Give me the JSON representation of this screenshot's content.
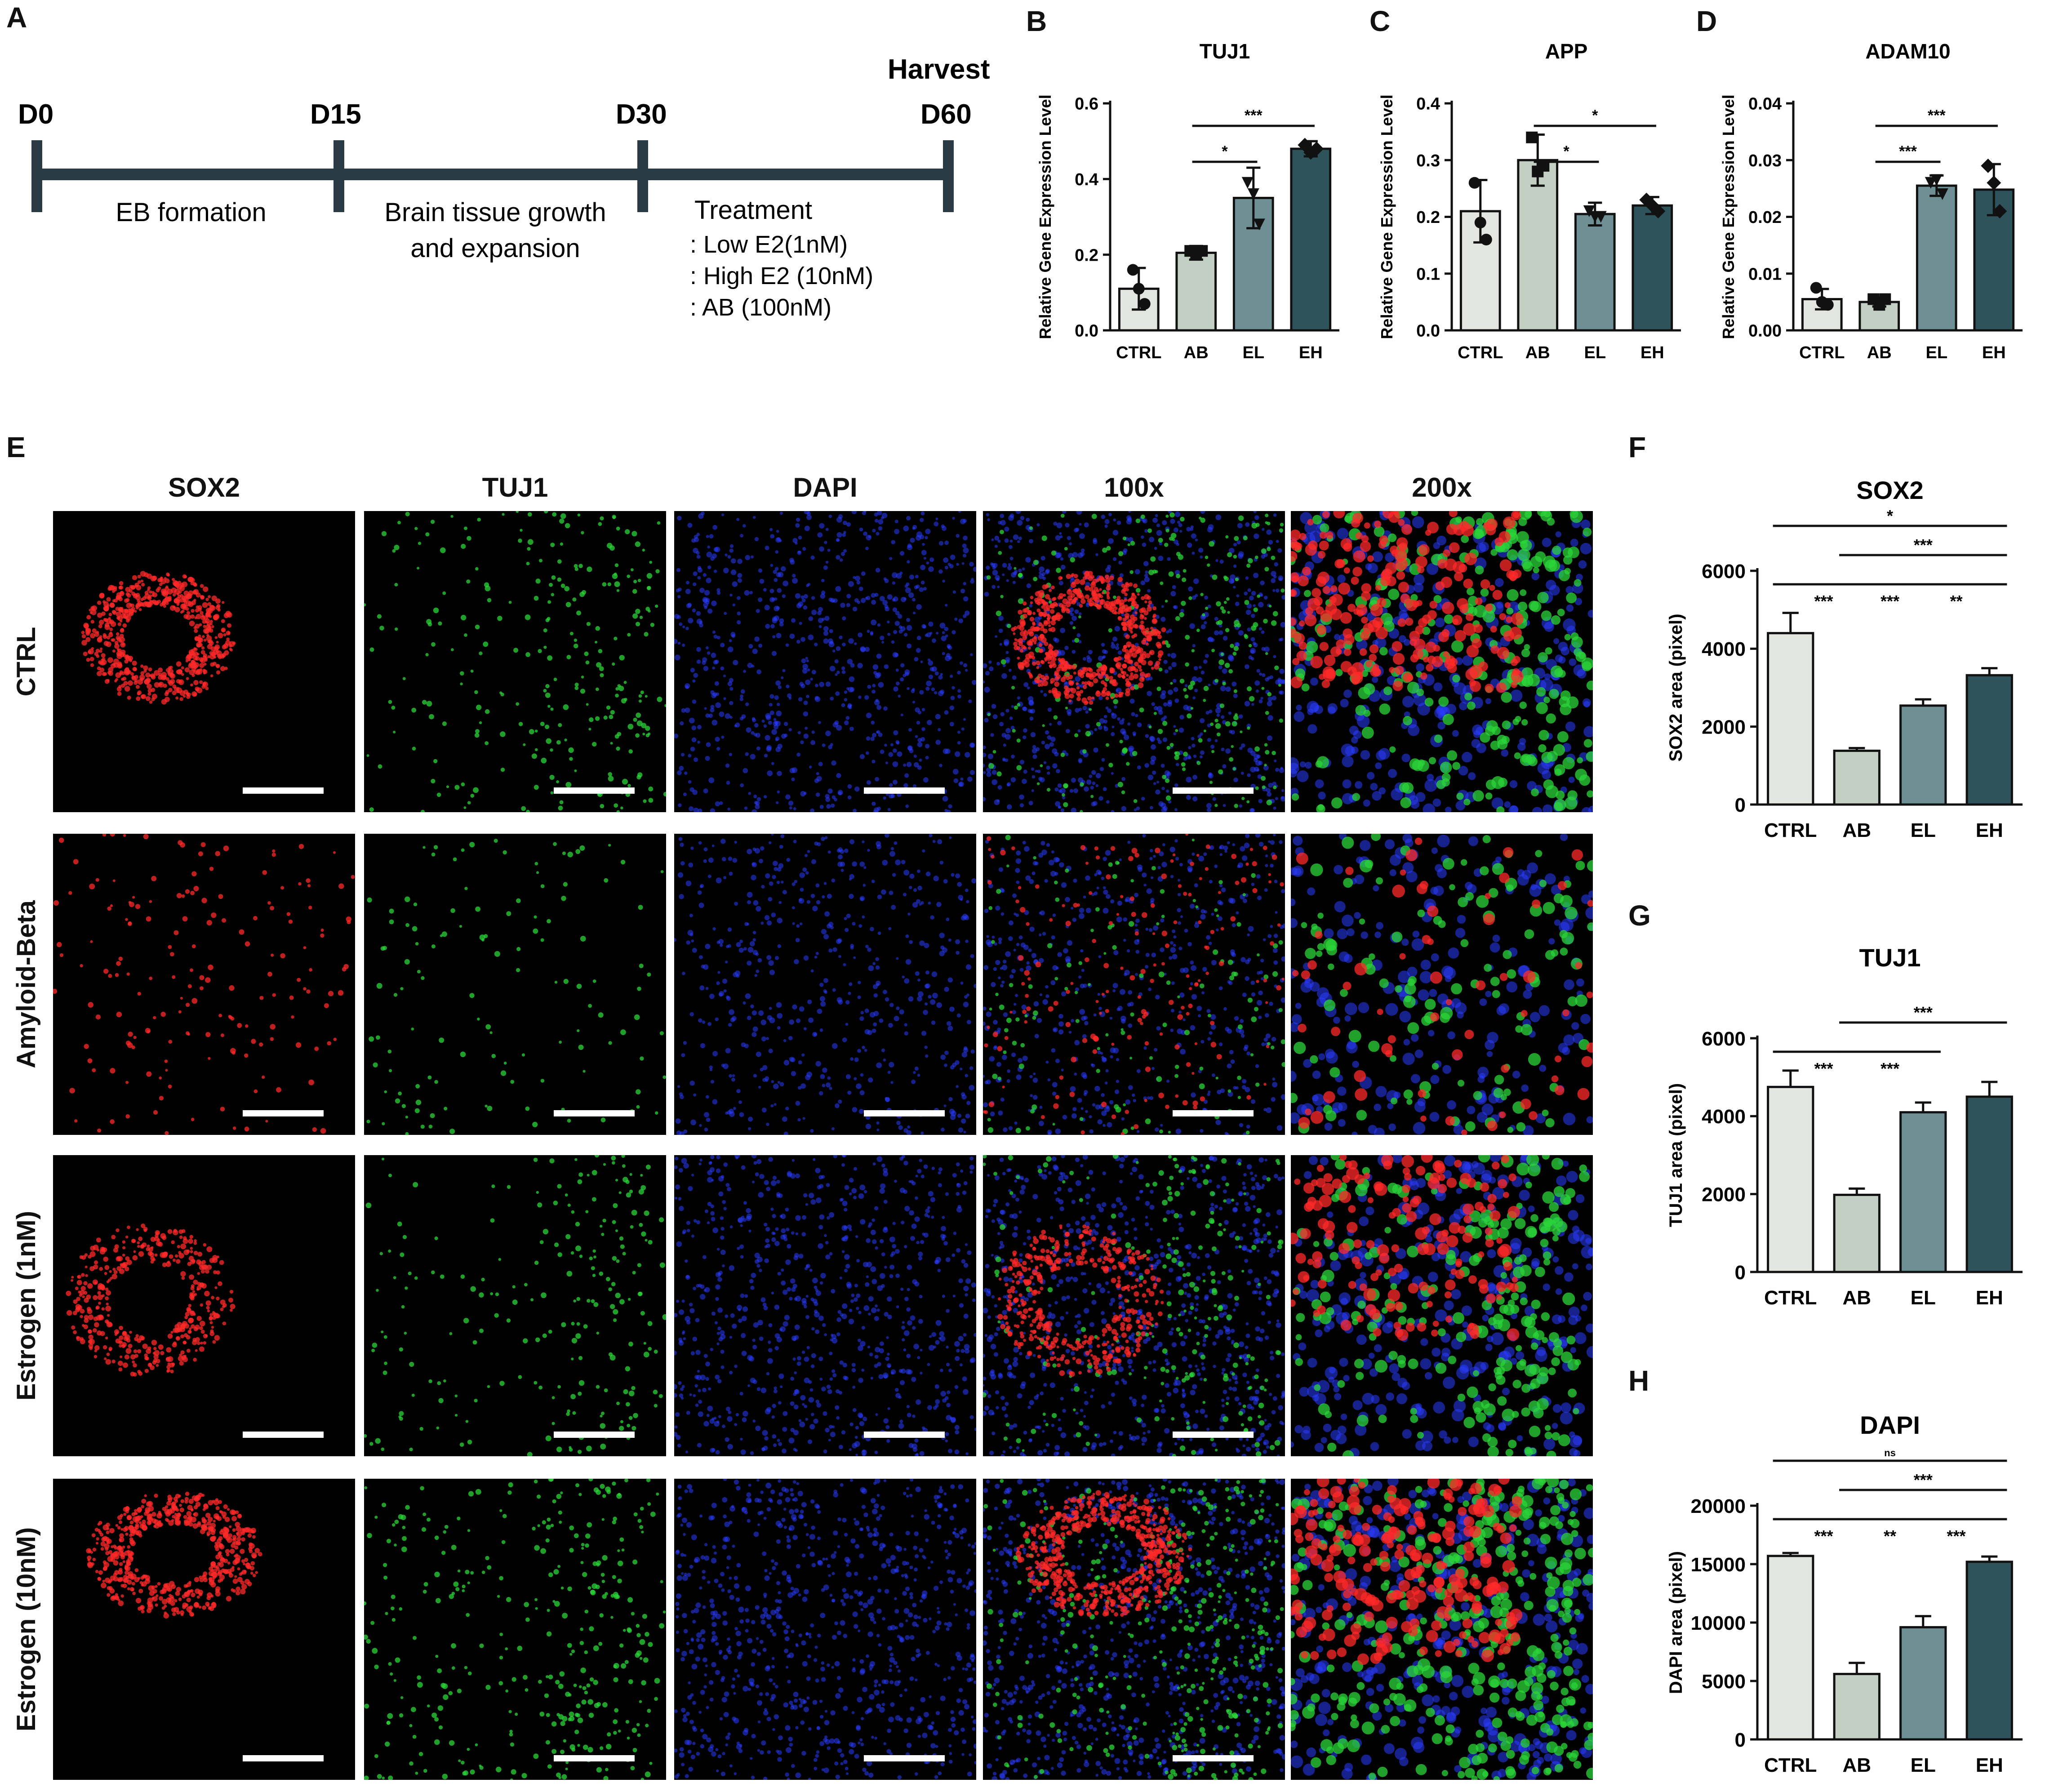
{
  "panel_letters": {
    "A": "A",
    "B": "B",
    "C": "C",
    "D": "D",
    "E": "E",
    "F": "F",
    "G": "G",
    "H": "H"
  },
  "timeline": {
    "days": [
      "D0",
      "D15",
      "D30",
      "D60"
    ],
    "harvest": "Harvest",
    "stage1": "EB formation",
    "stage2_line1": "Brain tissue growth",
    "stage2_line2": "and expansion",
    "treat_title": "Treatment",
    "treat_items": [
      ": Low E2(1nM)",
      ": High E2 (10nM)",
      ": AB (100nM)"
    ]
  },
  "colors": {
    "CTRL": "#e3e5e1",
    "AB": "#c4cfc4",
    "EL": "#6e8f94",
    "EH": "#2f535b",
    "sox2": "#ff2a2a",
    "tuj1": "#2bd43a",
    "dapi": "#2a3cff"
  },
  "chart_data": [
    {
      "id": "B",
      "type": "bar",
      "title": "TUJ1",
      "categories": [
        "CTRL",
        "AB",
        "EL",
        "EH"
      ],
      "values": [
        0.11,
        0.205,
        0.35,
        0.48
      ],
      "errors": [
        0.055,
        0.018,
        0.08,
        0.02
      ],
      "points": [
        [
          0.16,
          0.11,
          0.07
        ],
        [
          0.21,
          0.2,
          0.21
        ],
        [
          0.39,
          0.36,
          0.28
        ],
        [
          0.49,
          0.47,
          0.48
        ]
      ],
      "markers": [
        "circle",
        "square",
        "triangle",
        "diamond"
      ],
      "ylabel": "Relative Gene Expression Level",
      "ylim": [
        0,
        0.6
      ],
      "yticks": [
        "0.0",
        "0.2",
        "0.4",
        "0.6"
      ],
      "ytick_values": [
        0,
        0.2,
        0.4,
        0.6
      ],
      "sig": [
        {
          "from": 1,
          "to": 2,
          "label": "*"
        },
        {
          "from": 1,
          "to": 3,
          "label": "***"
        }
      ]
    },
    {
      "id": "C",
      "type": "bar",
      "title": "APP",
      "categories": [
        "CTRL",
        "AB",
        "EL",
        "EH"
      ],
      "values": [
        0.21,
        0.3,
        0.205,
        0.22
      ],
      "errors": [
        0.055,
        0.045,
        0.02,
        0.015
      ],
      "points": [
        [
          0.26,
          0.19,
          0.16
        ],
        [
          0.34,
          0.28,
          0.29
        ],
        [
          0.21,
          0.2,
          0.2
        ],
        [
          0.23,
          0.22,
          0.21
        ]
      ],
      "markers": [
        "circle",
        "square",
        "triangle",
        "diamond"
      ],
      "ylabel": "Relative Gene Expression Level",
      "ylim": [
        0,
        0.4
      ],
      "yticks": [
        "0.0",
        "0.1",
        "0.2",
        "0.3",
        "0.4"
      ],
      "ytick_values": [
        0,
        0.1,
        0.2,
        0.3,
        0.4
      ],
      "sig": [
        {
          "from": 1,
          "to": 2,
          "label": "*"
        },
        {
          "from": 1,
          "to": 3,
          "label": "*"
        }
      ]
    },
    {
      "id": "D",
      "type": "bar",
      "title": "ADAM10",
      "categories": [
        "CTRL",
        "AB",
        "EL",
        "EH"
      ],
      "values": [
        0.0055,
        0.005,
        0.0255,
        0.0248
      ],
      "errors": [
        0.0018,
        0.0008,
        0.0018,
        0.0045
      ],
      "points": [
        [
          0.0075,
          0.005,
          0.0045
        ],
        [
          0.0055,
          0.0045,
          0.0055
        ],
        [
          0.026,
          0.0265,
          0.024
        ],
        [
          0.029,
          0.026,
          0.021
        ]
      ],
      "markers": [
        "circle",
        "square",
        "triangle",
        "diamond"
      ],
      "ylabel": "Relative Gene Expression Level",
      "ylim": [
        0,
        0.04
      ],
      "yticks": [
        "0.00",
        "0.01",
        "0.02",
        "0.03",
        "0.04"
      ],
      "ytick_values": [
        0,
        0.01,
        0.02,
        0.03,
        0.04
      ],
      "sig": [
        {
          "from": 1,
          "to": 2,
          "label": "***"
        },
        {
          "from": 1,
          "to": 3,
          "label": "***"
        }
      ]
    },
    {
      "id": "F",
      "type": "bar",
      "title": "SOX2",
      "categories": [
        "CTRL",
        "AB",
        "EL",
        "EH"
      ],
      "values": [
        4400,
        1380,
        2540,
        3320
      ],
      "errors": [
        520,
        70,
        160,
        180
      ],
      "ylabel": "SOX2 area (pixel)",
      "ylim": [
        0,
        6000
      ],
      "yticks": [
        "0",
        "2000",
        "4000",
        "6000"
      ],
      "ytick_values": [
        0,
        2000,
        4000,
        6000
      ],
      "sig": [
        {
          "from": 0,
          "to": 3,
          "label": "*"
        },
        {
          "from": 1,
          "to": 3,
          "label": "***"
        },
        {
          "from": 0,
          "to": 1,
          "label": "***"
        },
        {
          "from": 1,
          "to": 2,
          "label": "***"
        },
        {
          "from": 2,
          "to": 3,
          "label": "**"
        }
      ]
    },
    {
      "id": "G",
      "type": "bar",
      "title": "TUJ1",
      "categories": [
        "CTRL",
        "AB",
        "EL",
        "EH"
      ],
      "values": [
        4750,
        1980,
        4100,
        4500
      ],
      "errors": [
        420,
        160,
        250,
        380
      ],
      "ylabel": "TUJ1 area (pixel)",
      "ylim": [
        0,
        6000
      ],
      "yticks": [
        "0",
        "2000",
        "4000",
        "6000"
      ],
      "ytick_values": [
        0,
        2000,
        4000,
        6000
      ],
      "sig": [
        {
          "from": 1,
          "to": 3,
          "label": "***"
        },
        {
          "from": 0,
          "to": 1,
          "label": "***"
        },
        {
          "from": 1,
          "to": 2,
          "label": "***"
        }
      ]
    },
    {
      "id": "H",
      "type": "bar",
      "title": "DAPI",
      "categories": [
        "CTRL",
        "AB",
        "EL",
        "EH"
      ],
      "values": [
        15700,
        5600,
        9600,
        15200
      ],
      "errors": [
        250,
        950,
        950,
        450
      ],
      "ylabel": "DAPI area (pixel)",
      "ylim": [
        0,
        20000
      ],
      "yticks": [
        "0",
        "5000",
        "10000",
        "15000",
        "20000"
      ],
      "ytick_values": [
        0,
        5000,
        10000,
        15000,
        20000
      ],
      "sig": [
        {
          "from": 0,
          "to": 3,
          "label": "ns"
        },
        {
          "from": 1,
          "to": 3,
          "label": "***"
        },
        {
          "from": 0,
          "to": 1,
          "label": "***"
        },
        {
          "from": 1,
          "to": 2,
          "label": "**"
        },
        {
          "from": 2,
          "to": 3,
          "label": "***"
        }
      ]
    }
  ],
  "panel_e": {
    "columns": [
      "SOX2",
      "TUJ1",
      "DAPI",
      "100x",
      "200x"
    ],
    "rows": [
      "CTRL",
      "Amyloid-Beta",
      "Estrogen (1nM)",
      "Estrogen (10nM)"
    ]
  }
}
